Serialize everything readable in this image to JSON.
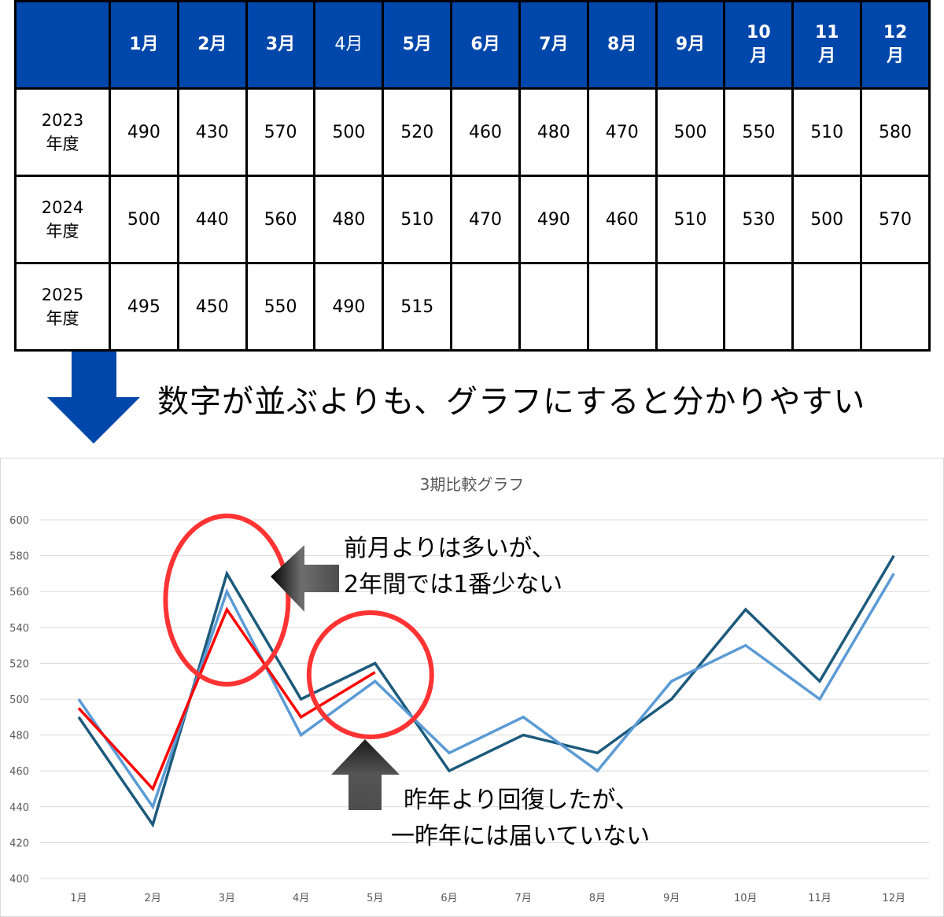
{
  "table": {
    "header": [
      "",
      "1月",
      "2月",
      "3月",
      "4月",
      "5月",
      "6月",
      "7月",
      "8月",
      "9月",
      "10\n月",
      "11\n月",
      "12\n月"
    ],
    "rows": [
      {
        "year": "2023\n年度",
        "values": [
          "490",
          "430",
          "570",
          "500",
          "520",
          "460",
          "480",
          "470",
          "500",
          "550",
          "510",
          "580"
        ]
      },
      {
        "year": "2024\n年度",
        "values": [
          "500",
          "440",
          "560",
          "480",
          "510",
          "470",
          "490",
          "460",
          "510",
          "530",
          "500",
          "570"
        ]
      },
      {
        "year": "2025\n年度",
        "values": [
          "495",
          "450",
          "550",
          "490",
          "515",
          "",
          "",
          "",
          "",
          "",
          "",
          ""
        ]
      }
    ]
  },
  "caption": "数字が並ぶよりも、グラフにすると分かりやすい",
  "annotations": {
    "upper": {
      "line1": "前月よりは多いが、",
      "line2": "2年間では1番少ない"
    },
    "lower": {
      "line1": "昨年より回復したが、",
      "line2": "一昨年には届いていない"
    }
  },
  "colors": {
    "header_bg": "#0047ab",
    "arrow_blue": "#0047ab",
    "series_2023": "#1c5a7c",
    "series_2024": "#5b9bd5",
    "series_2025": "#ff0000",
    "highlight_circle": "#ff3333",
    "gray_arrow": "#4d4d4d"
  },
  "chart_data": {
    "type": "line",
    "title": "3期比較グラフ",
    "categories": [
      "1月",
      "2月",
      "3月",
      "4月",
      "5月",
      "6月",
      "7月",
      "8月",
      "9月",
      "10月",
      "11月",
      "12月"
    ],
    "ylim": [
      400,
      600
    ],
    "yticks": [
      400,
      420,
      440,
      460,
      480,
      500,
      520,
      540,
      560,
      580,
      600
    ],
    "grid": true,
    "legend": "none",
    "series": [
      {
        "name": "",
        "values": [
          490,
          430,
          570,
          500,
          520,
          460,
          480,
          470,
          500,
          550,
          510,
          580
        ],
        "color": "#1c5a7c"
      },
      {
        "name": "",
        "values": [
          500,
          440,
          560,
          480,
          510,
          470,
          490,
          460,
          510,
          530,
          500,
          570
        ],
        "color": "#5b9bd5"
      },
      {
        "name": "",
        "values": [
          495,
          450,
          550,
          490,
          515,
          null,
          null,
          null,
          null,
          null,
          null,
          null
        ],
        "color": "#ff0000"
      }
    ],
    "highlights": [
      {
        "category": "3月",
        "note": "upper"
      },
      {
        "category": "5月",
        "note": "lower"
      }
    ]
  }
}
